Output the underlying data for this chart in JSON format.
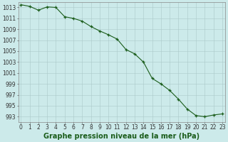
{
  "x": [
    0,
    1,
    2,
    3,
    4,
    5,
    6,
    7,
    8,
    9,
    10,
    11,
    12,
    13,
    14,
    15,
    16,
    17,
    18,
    19,
    20,
    21,
    22,
    23
  ],
  "y": [
    1013.5,
    1013.2,
    1012.5,
    1013.1,
    1013.0,
    1011.3,
    1011.0,
    1010.5,
    1009.5,
    1008.7,
    1008.0,
    1007.2,
    1005.3,
    1004.5,
    1003.0,
    1000.0,
    999.0,
    997.8,
    996.2,
    994.4,
    993.2,
    993.0,
    993.3,
    993.5
  ],
  "line_color": "#1a5c1a",
  "marker_color": "#1a5c1a",
  "bg_color": "#cceaea",
  "grid_color": "#aac8c8",
  "xlabel": "Graphe pression niveau de la mer (hPa)",
  "ylim_min": 992,
  "ylim_max": 1014,
  "ytick_min": 993,
  "ytick_max": 1013,
  "ytick_step": 2,
  "xlim_min": -0.3,
  "xlim_max": 23.3,
  "title_fontsize": 7,
  "tick_fontsize": 5.5
}
